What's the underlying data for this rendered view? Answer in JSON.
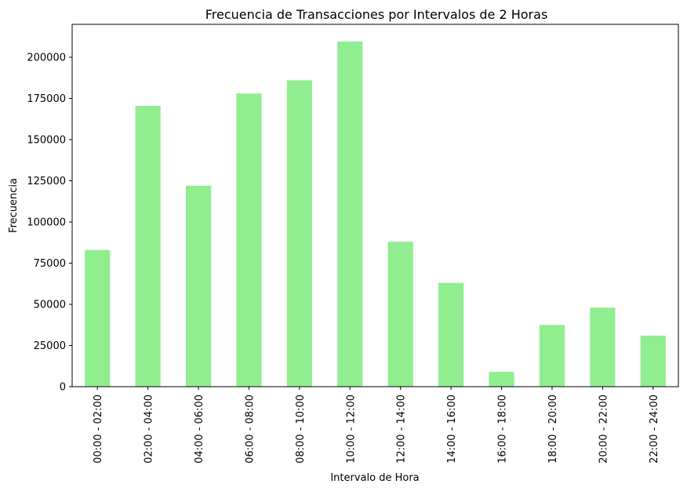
{
  "chart_data": {
    "type": "bar",
    "title": "Frecuencia de Transacciones por Intervalos de 2 Horas",
    "xlabel": "Intervalo de Hora",
    "ylabel": "Frecuencia",
    "categories": [
      "00:00 - 02:00",
      "02:00 - 04:00",
      "04:00 - 06:00",
      "06:00 - 08:00",
      "08:00 - 10:00",
      "10:00 - 12:00",
      "12:00 - 14:00",
      "14:00 - 16:00",
      "16:00 - 18:00",
      "18:00 - 20:00",
      "20:00 - 22:00",
      "22:00 - 24:00"
    ],
    "values": [
      83000,
      170500,
      122000,
      178000,
      186000,
      209500,
      88000,
      63000,
      9000,
      37500,
      48000,
      31000
    ],
    "ylim": [
      0,
      220000
    ],
    "yticks": [
      0,
      25000,
      50000,
      75000,
      100000,
      125000,
      150000,
      175000,
      200000
    ],
    "ytick_labels": [
      "0",
      "25000",
      "50000",
      "75000",
      "100000",
      "125000",
      "150000",
      "175000",
      "200000"
    ],
    "bar_color": "#90ee90",
    "grid": false,
    "legend": "none"
  }
}
